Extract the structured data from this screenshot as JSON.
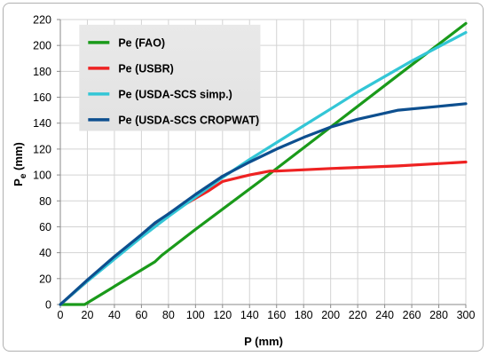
{
  "chart_data": {
    "type": "line",
    "xlabel": "P (mm)",
    "ylabel_main": "P",
    "ylabel_sub": "e",
    "ylabel_unit": " (mm)",
    "xlim": [
      0,
      300
    ],
    "ylim": [
      0,
      220
    ],
    "xticks": [
      "0",
      "20",
      "40",
      "60",
      "80",
      "100",
      "120",
      "140",
      "160",
      "180",
      "200",
      "220",
      "240",
      "260",
      "280",
      "300"
    ],
    "yticks": [
      "0",
      "20",
      "40",
      "60",
      "80",
      "100",
      "120",
      "140",
      "160",
      "180",
      "200",
      "220"
    ],
    "grid": true,
    "legend_position": "top-left",
    "series": [
      {
        "name": "Pe (FAO)",
        "color": "#1a9a1a",
        "points": [
          [
            0,
            0
          ],
          [
            18,
            0
          ],
          [
            70,
            33
          ],
          [
            75,
            38
          ],
          [
            100,
            58
          ],
          [
            150,
            97
          ],
          [
            200,
            137
          ],
          [
            250,
            177
          ],
          [
            300,
            217
          ]
        ]
      },
      {
        "name": "Pe (USBR)",
        "color": "#ee2222",
        "points": [
          [
            0,
            0
          ],
          [
            20,
            18
          ],
          [
            40,
            36
          ],
          [
            60,
            53
          ],
          [
            80,
            70
          ],
          [
            100,
            82
          ],
          [
            110,
            88
          ],
          [
            120,
            95
          ],
          [
            140,
            100
          ],
          [
            155,
            103
          ],
          [
            160,
            103
          ],
          [
            200,
            105
          ],
          [
            250,
            107
          ],
          [
            300,
            110
          ]
        ]
      },
      {
        "name": "Pe (USDA-SCS simp.)",
        "color": "#33c6d6",
        "points": [
          [
            0,
            0
          ],
          [
            20,
            18
          ],
          [
            40,
            35
          ],
          [
            60,
            52
          ],
          [
            80,
            68
          ],
          [
            100,
            83
          ],
          [
            120,
            98
          ],
          [
            140,
            112
          ],
          [
            160,
            125
          ],
          [
            180,
            138
          ],
          [
            200,
            151
          ],
          [
            220,
            164
          ],
          [
            240,
            176
          ],
          [
            260,
            188
          ],
          [
            280,
            199
          ],
          [
            300,
            210
          ]
        ]
      },
      {
        "name": "Pe (USDA-SCS CROPWAT)",
        "color": "#0d4f8f",
        "points": [
          [
            0,
            0
          ],
          [
            20,
            19
          ],
          [
            40,
            37
          ],
          [
            60,
            54
          ],
          [
            70,
            63
          ],
          [
            80,
            70
          ],
          [
            100,
            85
          ],
          [
            120,
            99
          ],
          [
            140,
            110
          ],
          [
            160,
            120
          ],
          [
            180,
            129
          ],
          [
            200,
            137
          ],
          [
            220,
            143
          ],
          [
            250,
            150
          ],
          [
            280,
            153
          ],
          [
            300,
            155
          ]
        ]
      }
    ]
  }
}
